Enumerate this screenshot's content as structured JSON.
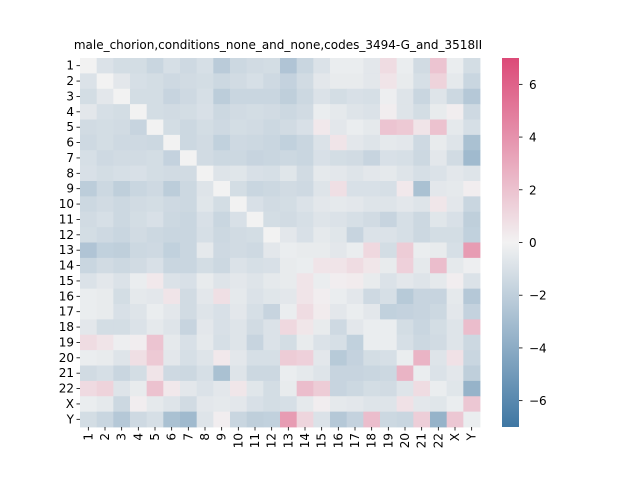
{
  "chart_data": {
    "type": "heatmap",
    "title": "male_chorion,conditions_none_and_none,codes_3494-G_and_3518II",
    "xlabel": "",
    "ylabel": "",
    "categories": [
      "1",
      "2",
      "3",
      "4",
      "5",
      "6",
      "7",
      "8",
      "9",
      "10",
      "11",
      "12",
      "13",
      "14",
      "15",
      "16",
      "17",
      "18",
      "19",
      "20",
      "21",
      "22",
      "X",
      "Y"
    ],
    "colorbar": {
      "vmin": -7,
      "vmax": 7,
      "ticks": [
        -6,
        -4,
        -2,
        0,
        2,
        4,
        6
      ],
      "position": "right"
    },
    "colors": {
      "low": "#3f77a3",
      "mid": "#f2f2f2",
      "high": "#dc4a78"
    },
    "values": [
      [
        0,
        -0.9,
        -1.2,
        -1.2,
        -1.6,
        -1.1,
        -1.4,
        -1.1,
        -2.2,
        -1.5,
        -1.3,
        -1.2,
        -2.6,
        -1.6,
        -0.9,
        -0.3,
        -0.3,
        -0.6,
        0.9,
        -0.3,
        -1.3,
        1.9,
        -0.3,
        -1.2
      ],
      [
        -0.9,
        0,
        -0.6,
        -1.1,
        -1.2,
        -1.4,
        -1.3,
        -1.2,
        -1.5,
        -1.3,
        -1.1,
        -1.4,
        -1.8,
        -1.3,
        -0.6,
        -0.4,
        -0.4,
        -0.6,
        0.6,
        -0.4,
        -1.1,
        1.3,
        -0.5,
        -1.6
      ],
      [
        -1.2,
        -0.6,
        0,
        -1.2,
        -1.2,
        -1.7,
        -1.4,
        -1.1,
        -2.1,
        -1.6,
        -1.6,
        -1.6,
        -2.0,
        -1.5,
        -0.9,
        -1.2,
        -1.0,
        -1.1,
        -0.2,
        -0.8,
        -1.6,
        -0.8,
        -1.5,
        -2.4
      ],
      [
        -0.6,
        -1.1,
        -1.2,
        0,
        -1.2,
        -1.3,
        -1.2,
        -1.0,
        -1.5,
        -1.3,
        -1.2,
        -1.3,
        -1.5,
        -1.3,
        -0.3,
        -0.5,
        -0.8,
        -0.9,
        0.2,
        -0.8,
        -1.2,
        -0.4,
        0.2,
        -1.4
      ],
      [
        -1.3,
        -1.2,
        -1.3,
        -1.7,
        0,
        -1.2,
        -1.5,
        -1.2,
        -1.4,
        -1.2,
        -1.3,
        -1.5,
        -1.3,
        -1.0,
        0.4,
        -0.6,
        -0.3,
        -0.5,
        1.9,
        1.7,
        0.6,
        2.0,
        -0.5,
        -1.1
      ],
      [
        -1.4,
        -1.2,
        -1.4,
        -1.4,
        -1.5,
        0,
        -1.5,
        -1.3,
        -1.9,
        -1.4,
        -1.5,
        -1.6,
        -1.9,
        -1.6,
        -0.9,
        0.6,
        -0.6,
        -0.8,
        -0.5,
        -0.6,
        -1.4,
        -0.4,
        -0.8,
        -2.8
      ],
      [
        -1.1,
        -1.4,
        -1.3,
        -1.3,
        -1.2,
        -1.8,
        0,
        -1.3,
        -1.5,
        -1.5,
        -1.7,
        -1.6,
        -1.5,
        -1.6,
        -1.0,
        -1.2,
        -1.3,
        -1.7,
        -1.0,
        -1.1,
        -1.5,
        -0.6,
        -1.3,
        -3.2
      ],
      [
        -1.0,
        -1.2,
        -1.1,
        -1.0,
        -1.2,
        -1.3,
        -1.3,
        0,
        -0.8,
        -0.7,
        -1.0,
        -1.1,
        -0.7,
        -1.3,
        -0.5,
        -0.6,
        -0.8,
        -0.6,
        -0.5,
        -0.8,
        -1.1,
        -0.9,
        -0.6,
        -0.8
      ],
      [
        -2.1,
        -1.5,
        -2.0,
        -1.6,
        -1.4,
        -2.1,
        -1.5,
        -0.8,
        0,
        -1.2,
        -1.6,
        -1.5,
        -1.3,
        -1.4,
        -0.8,
        0.8,
        -1.0,
        -1.0,
        -1.1,
        0.4,
        -2.8,
        -0.6,
        -0.5,
        0.2
      ],
      [
        -1.5,
        -1.3,
        -1.5,
        -1.3,
        -1.2,
        -1.4,
        -1.5,
        -0.7,
        -1.2,
        0,
        -1.0,
        -1.3,
        -1.2,
        -0.9,
        -0.6,
        -0.5,
        -0.6,
        -0.8,
        -0.8,
        -0.6,
        -0.8,
        0.5,
        -0.6,
        -1.6
      ],
      [
        -1.3,
        -1.1,
        -1.5,
        -1.2,
        -1.0,
        -1.5,
        -1.6,
        -1.0,
        -1.6,
        -1.0,
        0,
        -1.2,
        -1.3,
        -1.1,
        -0.8,
        -0.9,
        -1.1,
        -1.3,
        -1.7,
        -1.1,
        -1.5,
        -0.7,
        -1.0,
        -2.0
      ],
      [
        -1.2,
        -1.4,
        -1.6,
        -1.3,
        -1.5,
        -1.6,
        -1.6,
        -1.1,
        -1.5,
        -1.3,
        -1.2,
        0,
        -0.6,
        -1.0,
        -0.5,
        -0.7,
        -1.7,
        -0.9,
        -0.9,
        -1.1,
        -1.5,
        -1.2,
        -1.2,
        -1.9
      ],
      [
        -2.6,
        -1.9,
        -2.0,
        -1.5,
        -1.4,
        -1.9,
        -1.6,
        -0.5,
        -1.4,
        -1.3,
        -1.4,
        -0.6,
        -0.3,
        -0.4,
        -0.4,
        -0.6,
        -0.3,
        1.1,
        -1.2,
        1.6,
        -0.3,
        -0.4,
        -1.1,
        3.6
      ],
      [
        -1.6,
        -1.3,
        -1.5,
        -1.3,
        -1.0,
        -1.6,
        -1.6,
        -1.2,
        -1.5,
        -0.9,
        -1.1,
        -1.0,
        -0.4,
        -0.3,
        0.6,
        0.6,
        0.9,
        0.5,
        -0.4,
        1.4,
        -0.5,
        2.2,
        -0.5,
        -0.2
      ],
      [
        -0.9,
        -0.6,
        -0.9,
        -0.3,
        0.4,
        -0.9,
        -1.0,
        -0.4,
        -0.8,
        -0.6,
        -0.8,
        -0.5,
        -0.4,
        0.6,
        -0.3,
        0.2,
        0.3,
        -0.4,
        -0.9,
        -0.6,
        -0.8,
        -0.5,
        0.2,
        -0.9
      ],
      [
        -0.3,
        -0.4,
        -1.2,
        -0.5,
        -0.6,
        0.6,
        -1.3,
        -0.6,
        0.8,
        -0.5,
        -0.9,
        -0.7,
        -0.6,
        0.6,
        0.2,
        -0.3,
        -0.6,
        -1.4,
        -1.1,
        -2.3,
        -1.7,
        -1.7,
        -0.5,
        -2.4
      ],
      [
        -0.3,
        -0.4,
        -1.0,
        -0.8,
        -0.3,
        -0.6,
        -1.3,
        -0.8,
        -1.0,
        -0.6,
        -1.1,
        -1.7,
        -0.3,
        0.9,
        0.3,
        -0.6,
        -0.3,
        -0.6,
        -1.9,
        -1.8,
        -1.7,
        -1.5,
        -0.6,
        -1.8
      ],
      [
        -0.6,
        -1.2,
        -1.2,
        -0.9,
        -0.5,
        -0.8,
        -1.7,
        -0.6,
        -1.0,
        -0.8,
        -1.3,
        -0.9,
        1.1,
        0.5,
        -0.4,
        -1.4,
        -0.6,
        -0.3,
        -0.3,
        -1.2,
        -1.6,
        -1.2,
        -0.8,
        2.2
      ],
      [
        0.9,
        0.6,
        -0.2,
        0.2,
        1.9,
        -0.5,
        -1.0,
        -0.5,
        -1.1,
        -0.8,
        -1.7,
        -0.9,
        -1.2,
        -0.4,
        -0.9,
        -1.1,
        -1.9,
        -0.3,
        -0.3,
        -1.1,
        -1.5,
        -1.3,
        -0.8,
        -1.5
      ],
      [
        -0.3,
        -0.4,
        -0.8,
        0.8,
        1.7,
        -0.6,
        -1.1,
        -0.8,
        0.4,
        -0.6,
        -1.1,
        -1.1,
        1.6,
        1.4,
        -0.6,
        -2.3,
        -1.8,
        -1.2,
        -1.1,
        -0.3,
        2.6,
        -0.8,
        0.7,
        -1.6
      ],
      [
        -1.3,
        -1.1,
        -1.6,
        -1.2,
        0.6,
        -1.4,
        -1.5,
        -1.1,
        -2.8,
        -0.8,
        -1.5,
        -1.5,
        -0.3,
        -0.5,
        -0.8,
        -1.7,
        -1.7,
        -1.6,
        -1.5,
        2.6,
        -0.3,
        -0.9,
        -0.6,
        -2.0
      ],
      [
        1.0,
        1.3,
        -0.8,
        -0.4,
        2.0,
        0.4,
        -0.6,
        -0.9,
        -0.6,
        0.5,
        -0.7,
        -1.2,
        -0.4,
        2.2,
        1.6,
        -1.7,
        -1.5,
        -1.2,
        -1.3,
        -0.8,
        0.9,
        -0.3,
        -0.7,
        -3.6
      ],
      [
        -0.3,
        -0.5,
        -1.5,
        0.2,
        -0.5,
        -0.8,
        -1.3,
        -0.6,
        -0.5,
        -0.6,
        -1.0,
        -1.2,
        -1.1,
        -0.5,
        0.2,
        -0.5,
        -0.6,
        -0.8,
        -0.8,
        0.7,
        -0.6,
        -0.7,
        -0.3,
        1.8
      ],
      [
        -1.2,
        -1.6,
        -2.4,
        -1.4,
        -1.1,
        -2.8,
        -3.2,
        -0.8,
        0.2,
        -1.6,
        -2.0,
        -1.9,
        3.6,
        1.2,
        -0.9,
        -2.4,
        -1.8,
        2.2,
        -1.5,
        -1.6,
        1.5,
        -3.6,
        1.8,
        -0.3
      ]
    ]
  }
}
